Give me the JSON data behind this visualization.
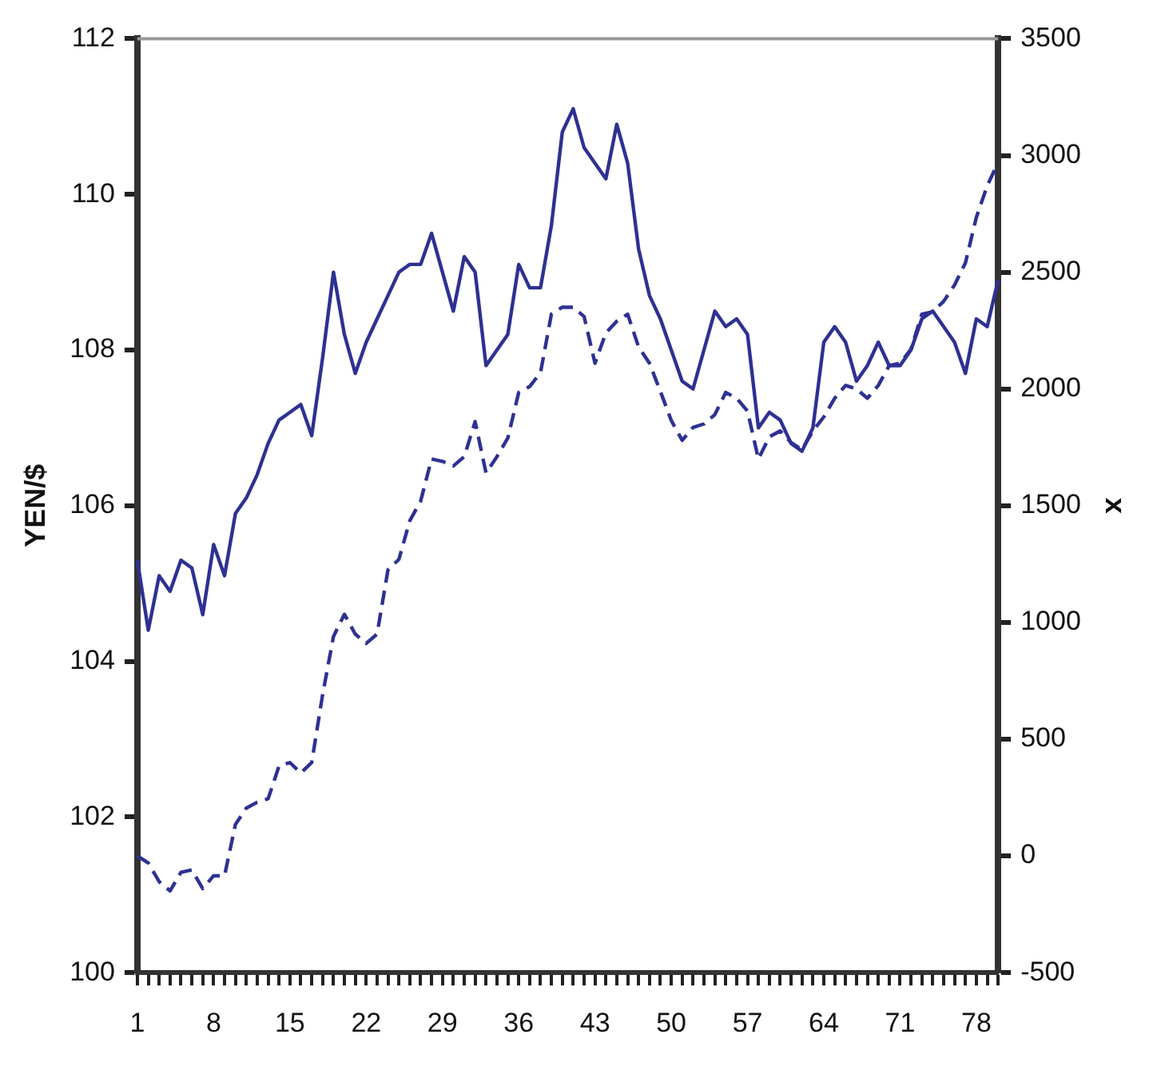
{
  "chart_data": {
    "type": "line",
    "ylabel": "YEN/$",
    "y2label": "x",
    "categories": [
      "1",
      null,
      null,
      null,
      null,
      null,
      null,
      "8",
      null,
      null,
      null,
      null,
      null,
      null,
      "15",
      null,
      null,
      null,
      null,
      null,
      null,
      "22",
      null,
      null,
      null,
      null,
      null,
      null,
      "29",
      null,
      null,
      null,
      null,
      null,
      null,
      "36",
      null,
      null,
      null,
      null,
      null,
      null,
      "43",
      null,
      null,
      null,
      null,
      null,
      null,
      "50",
      null,
      null,
      null,
      null,
      null,
      null,
      "57",
      null,
      null,
      null,
      null,
      null,
      null,
      "64",
      null,
      null,
      null,
      null,
      null,
      null,
      "71",
      null,
      null,
      null,
      null,
      null,
      null,
      "78",
      null,
      null
    ],
    "series": [
      {
        "color": "#2e3192",
        "line_style": "solid",
        "values": [
          105.3,
          104.4,
          105.1,
          104.9,
          105.3,
          105.2,
          104.6,
          105.5,
          105.1,
          105.9,
          106.1,
          106.4,
          106.8,
          107.1,
          107.2,
          107.3,
          106.9,
          107.9,
          109.0,
          108.2,
          107.7,
          108.1,
          108.4,
          108.7,
          109.0,
          109.1,
          109.1,
          109.5,
          109.0,
          108.5,
          109.2,
          109.0,
          107.8,
          108.0,
          108.2,
          109.1,
          108.8,
          108.8,
          109.6,
          110.8,
          111.1,
          110.6,
          110.4,
          110.2,
          110.9,
          110.4,
          109.3,
          108.7,
          108.4,
          108.0,
          107.6,
          107.5,
          108.0,
          108.5,
          108.3,
          108.4,
          108.2,
          107.0,
          107.2,
          107.1,
          106.8,
          106.7,
          107.0,
          108.1,
          108.3,
          108.1,
          107.6,
          107.8,
          108.1,
          107.8,
          107.8,
          108.0,
          108.4,
          108.5,
          108.3,
          108.1,
          107.7,
          108.4,
          108.3,
          108.9
        ]
      },
      {
        "color": "#2e3192",
        "line_style": "dashed",
        "axis": "y2",
        "values": [
          0,
          -30,
          -110,
          -150,
          -70,
          -60,
          -140,
          -85,
          -85,
          135,
          205,
          230,
          245,
          385,
          400,
          355,
          400,
          690,
          940,
          1035,
          950,
          910,
          950,
          1225,
          1270,
          1435,
          1520,
          1700,
          1690,
          1670,
          1710,
          1860,
          1640,
          1710,
          1790,
          1985,
          2010,
          2070,
          2320,
          2350,
          2350,
          2310,
          2110,
          2240,
          2290,
          2320,
          2180,
          2110,
          1990,
          1865,
          1780,
          1835,
          1850,
          1890,
          1985,
          1960,
          1905,
          1700,
          1795,
          1820,
          1770,
          1740,
          1820,
          1880,
          1960,
          2015,
          2000,
          1960,
          2015,
          2100,
          2110,
          2170,
          2320,
          2330,
          2375,
          2445,
          2540,
          2735,
          2870,
          2970
        ]
      }
    ],
    "ylim": [
      100,
      112
    ],
    "yticks": [
      100,
      102,
      104,
      106,
      108,
      110,
      112
    ],
    "y2lim": [
      -500,
      3500
    ],
    "y2ticks": [
      -500,
      0,
      500,
      1000,
      1500,
      2000,
      2500,
      3000,
      3500
    ],
    "grid": false,
    "legend": false,
    "marker": "none"
  }
}
